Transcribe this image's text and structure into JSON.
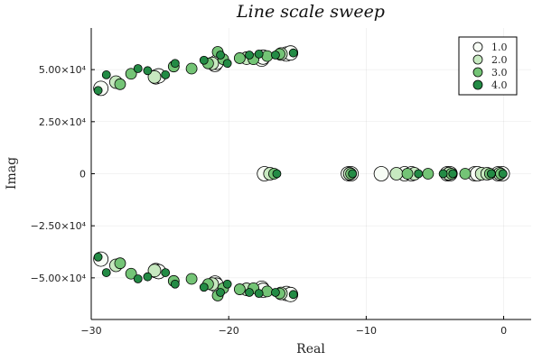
{
  "chart_data": {
    "type": "scatter",
    "title": "Line scale sweep",
    "xlabel": "Real",
    "ylabel": "Imag",
    "xlim": [
      -30,
      2
    ],
    "ylim": [
      -70000,
      70000
    ],
    "x_ticks": [
      -30,
      -20,
      -10,
      0
    ],
    "x_tick_labels": [
      "−30",
      "−20",
      "−10",
      "0"
    ],
    "y_ticks": [
      -50000,
      -25000,
      0,
      25000,
      50000
    ],
    "y_tick_labels": [
      "−5.00×10⁴",
      "−2.50×10⁴",
      "0",
      "2.50×10⁴",
      "5.00×10⁴"
    ],
    "grid": true,
    "legend_position": "top-right",
    "series": [
      {
        "name": "1.0",
        "color": "#f7fcf5",
        "points": [
          [
            -29.3,
            41000
          ],
          [
            -25.3,
            46500
          ],
          [
            -25.1,
            47000
          ],
          [
            -21.0,
            52500
          ],
          [
            -20.9,
            53500
          ],
          [
            -17.6,
            55000
          ],
          [
            -17.5,
            56000
          ],
          [
            -15.8,
            57500
          ],
          [
            -15.5,
            58000
          ],
          [
            -17.4,
            0
          ],
          [
            -11.3,
            0
          ],
          [
            -11.1,
            0
          ],
          [
            -8.9,
            0
          ],
          [
            -7.2,
            0
          ],
          [
            -6.7,
            0
          ],
          [
            -4.1,
            0
          ],
          [
            -3.9,
            0
          ],
          [
            -2.1,
            0
          ],
          [
            -1.9,
            0
          ],
          [
            -0.4,
            0
          ],
          [
            -0.1,
            0
          ],
          [
            -29.3,
            -41000
          ],
          [
            -25.3,
            -46500
          ],
          [
            -25.1,
            -47000
          ],
          [
            -21.0,
            -52500
          ],
          [
            -20.9,
            -53500
          ],
          [
            -17.6,
            -55000
          ],
          [
            -17.5,
            -56000
          ],
          [
            -15.8,
            -57500
          ],
          [
            -15.5,
            -58000
          ]
        ]
      },
      {
        "name": "2.0",
        "color": "#c7e9c0",
        "points": [
          [
            -28.2,
            44000
          ],
          [
            -25.4,
            46500
          ],
          [
            -21.2,
            53000
          ],
          [
            -18.7,
            55500
          ],
          [
            -16.2,
            57500
          ],
          [
            -17.0,
            0
          ],
          [
            -11.2,
            0
          ],
          [
            -7.8,
            0
          ],
          [
            -6.5,
            0
          ],
          [
            -4.0,
            0
          ],
          [
            -1.6,
            0
          ],
          [
            -1.2,
            0
          ],
          [
            -0.3,
            0
          ],
          [
            -28.2,
            -44000
          ],
          [
            -25.4,
            -46500
          ],
          [
            -21.2,
            -53000
          ],
          [
            -18.7,
            -55500
          ],
          [
            -16.2,
            -57500
          ]
        ]
      },
      {
        "name": "3.0",
        "color": "#74c476",
        "points": [
          [
            -27.9,
            43000
          ],
          [
            -27.1,
            48000
          ],
          [
            -24.0,
            51500
          ],
          [
            -22.7,
            50500
          ],
          [
            -21.5,
            53000
          ],
          [
            -20.8,
            58500
          ],
          [
            -20.4,
            55000
          ],
          [
            -19.2,
            55500
          ],
          [
            -18.2,
            55000
          ],
          [
            -17.2,
            56500
          ],
          [
            -16.3,
            57500
          ],
          [
            -16.7,
            0
          ],
          [
            -11.1,
            0
          ],
          [
            -7.0,
            0
          ],
          [
            -5.5,
            0
          ],
          [
            -3.8,
            0
          ],
          [
            -2.8,
            0
          ],
          [
            -1.0,
            0
          ],
          [
            -0.2,
            0
          ],
          [
            -27.9,
            -43000
          ],
          [
            -27.1,
            -48000
          ],
          [
            -24.0,
            -51500
          ],
          [
            -22.7,
            -50500
          ],
          [
            -21.5,
            -53000
          ],
          [
            -20.8,
            -58500
          ],
          [
            -20.4,
            -55000
          ],
          [
            -19.2,
            -55500
          ],
          [
            -18.2,
            -55000
          ],
          [
            -17.2,
            -56500
          ],
          [
            -16.3,
            -57500
          ]
        ]
      },
      {
        "name": "4.0",
        "color": "#238b45",
        "points": [
          [
            -29.5,
            40000
          ],
          [
            -28.9,
            47500
          ],
          [
            -26.6,
            50500
          ],
          [
            -25.9,
            49500
          ],
          [
            -24.6,
            47500
          ],
          [
            -23.9,
            53000
          ],
          [
            -21.8,
            54500
          ],
          [
            -20.6,
            57000
          ],
          [
            -20.1,
            53000
          ],
          [
            -18.5,
            57000
          ],
          [
            -17.8,
            57500
          ],
          [
            -16.6,
            57000
          ],
          [
            -15.3,
            58000
          ],
          [
            -16.5,
            0
          ],
          [
            -11.0,
            0
          ],
          [
            -6.2,
            0
          ],
          [
            -4.4,
            0
          ],
          [
            -3.7,
            0
          ],
          [
            -0.9,
            0
          ],
          [
            -0.05,
            0
          ],
          [
            -29.5,
            -40000
          ],
          [
            -28.9,
            -47500
          ],
          [
            -26.6,
            -50500
          ],
          [
            -25.9,
            -49500
          ],
          [
            -24.6,
            -47500
          ],
          [
            -23.9,
            -53000
          ],
          [
            -21.8,
            -54500
          ],
          [
            -20.6,
            -57000
          ],
          [
            -20.1,
            -53000
          ],
          [
            -18.5,
            -57000
          ],
          [
            -17.8,
            -57500
          ],
          [
            -16.6,
            -57000
          ],
          [
            -15.3,
            -58000
          ]
        ]
      }
    ]
  }
}
